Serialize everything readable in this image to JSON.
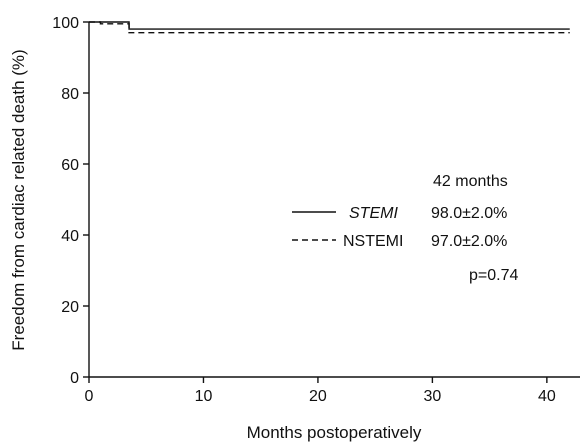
{
  "chart_data": {
    "type": "line",
    "step": true,
    "xlabel": "Months postoperatively",
    "ylabel": "Freedom from cardiac related death (%)",
    "xlim": [
      0,
      43
    ],
    "ylim": [
      0,
      100
    ],
    "xticks": [
      0,
      10,
      20,
      30,
      40
    ],
    "yticks": [
      0,
      20,
      40,
      60,
      80,
      100
    ],
    "grid": false,
    "legend_placement": "right",
    "series": [
      {
        "name": "STEMI",
        "style": "solid",
        "x": [
          0,
          2,
          3.5,
          42
        ],
        "y": [
          100,
          100,
          98,
          98
        ]
      },
      {
        "name": "NSTEMI",
        "style": "dashed",
        "x": [
          0,
          1,
          2,
          3.5,
          42
        ],
        "y": [
          100,
          99.5,
          99.5,
          97,
          97
        ]
      }
    ],
    "annotations": {
      "header": "42 months",
      "rows": [
        {
          "series": "STEMI",
          "label": "STEMI",
          "value": "98.0±2.0%"
        },
        {
          "series": "NSTEMI",
          "label": "NSTEMI",
          "value": "97.0±2.0%"
        }
      ],
      "pvalue": "p=0.74"
    }
  }
}
